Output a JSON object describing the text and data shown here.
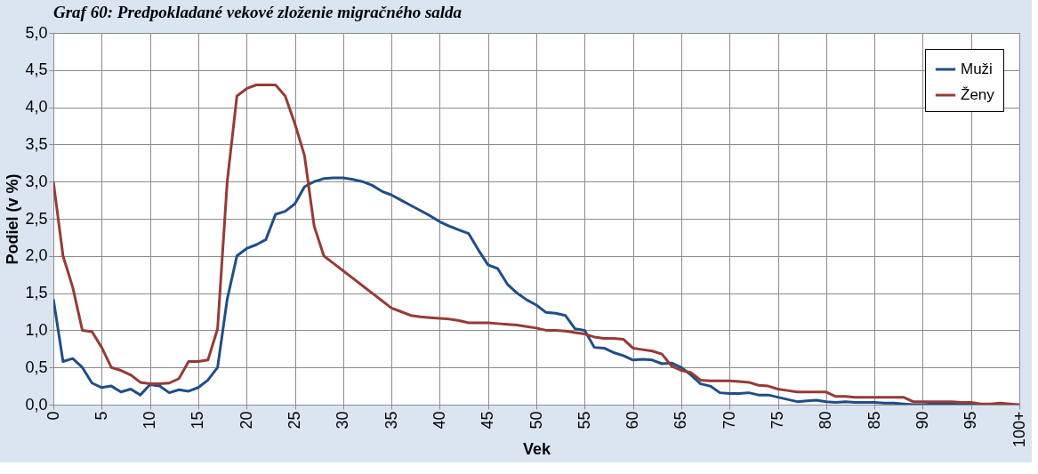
{
  "chart_data": {
    "type": "line",
    "title": "Graf 60: Predpokladané vekové zloženie migračného salda",
    "xlabel": "Vek",
    "ylabel": "Podiel (v %)",
    "x": [
      0,
      1,
      2,
      3,
      4,
      5,
      6,
      7,
      8,
      9,
      10,
      11,
      12,
      13,
      14,
      15,
      16,
      17,
      18,
      19,
      20,
      21,
      22,
      23,
      24,
      25,
      26,
      27,
      28,
      29,
      30,
      31,
      32,
      33,
      34,
      35,
      36,
      37,
      38,
      39,
      40,
      41,
      42,
      43,
      44,
      45,
      46,
      47,
      48,
      49,
      50,
      51,
      52,
      53,
      54,
      55,
      56,
      57,
      58,
      59,
      60,
      61,
      62,
      63,
      64,
      65,
      66,
      67,
      68,
      69,
      70,
      71,
      72,
      73,
      74,
      75,
      76,
      77,
      78,
      79,
      80,
      81,
      82,
      83,
      84,
      85,
      86,
      87,
      88,
      89,
      90,
      91,
      92,
      93,
      94,
      95,
      96,
      97,
      98,
      99,
      100
    ],
    "series": [
      {
        "name": "Muži",
        "color": "#1f4e89",
        "values": [
          1.42,
          0.58,
          0.62,
          0.5,
          0.29,
          0.23,
          0.25,
          0.17,
          0.21,
          0.13,
          0.27,
          0.25,
          0.16,
          0.2,
          0.18,
          0.23,
          0.33,
          0.5,
          1.42,
          2.0,
          2.1,
          2.15,
          2.22,
          2.56,
          2.6,
          2.7,
          2.93,
          3.0,
          3.04,
          3.05,
          3.05,
          3.03,
          3.0,
          2.95,
          2.87,
          2.82,
          2.75,
          2.68,
          2.61,
          2.54,
          2.46,
          2.4,
          2.35,
          2.3,
          2.08,
          1.88,
          1.83,
          1.62,
          1.5,
          1.41,
          1.34,
          1.24,
          1.23,
          1.2,
          1.02,
          1.0,
          0.77,
          0.76,
          0.7,
          0.66,
          0.6,
          0.61,
          0.6,
          0.55,
          0.56,
          0.5,
          0.4,
          0.28,
          0.25,
          0.16,
          0.15,
          0.15,
          0.16,
          0.13,
          0.13,
          0.1,
          0.07,
          0.04,
          0.05,
          0.06,
          0.04,
          0.03,
          0.04,
          0.03,
          0.03,
          0.03,
          0.02,
          0.02,
          0.01,
          0.0,
          0.0,
          0.01,
          0.01,
          0.01,
          0.0,
          0.0,
          0.0,
          0.0,
          null,
          null,
          null
        ]
      },
      {
        "name": "Ženy",
        "color": "#983a35",
        "values": [
          3.0,
          2.0,
          1.58,
          1.0,
          0.98,
          0.77,
          0.5,
          0.46,
          0.4,
          0.3,
          0.28,
          0.28,
          0.29,
          0.35,
          0.58,
          0.58,
          0.6,
          1.02,
          3.0,
          4.15,
          4.25,
          4.3,
          4.3,
          4.3,
          4.15,
          3.78,
          3.35,
          2.4,
          2.0,
          1.9,
          1.8,
          1.7,
          1.6,
          1.5,
          1.4,
          1.3,
          1.25,
          1.2,
          1.18,
          1.17,
          1.16,
          1.15,
          1.13,
          1.1,
          1.1,
          1.1,
          1.09,
          1.08,
          1.07,
          1.05,
          1.03,
          1.0,
          1.0,
          0.99,
          0.97,
          0.95,
          0.91,
          0.89,
          0.89,
          0.88,
          0.76,
          0.74,
          0.72,
          0.68,
          0.52,
          0.46,
          0.43,
          0.33,
          0.32,
          0.32,
          0.32,
          0.31,
          0.3,
          0.26,
          0.25,
          0.21,
          0.19,
          0.17,
          0.17,
          0.17,
          0.17,
          0.11,
          0.11,
          0.1,
          0.1,
          0.1,
          0.1,
          0.1,
          0.1,
          0.04,
          0.04,
          0.04,
          0.04,
          0.04,
          0.03,
          0.03,
          0.01,
          0.01,
          0.02,
          0.01,
          0.0
        ]
      }
    ],
    "xlim": [
      0,
      100
    ],
    "xticks": [
      0,
      5,
      10,
      15,
      20,
      25,
      30,
      35,
      40,
      45,
      50,
      55,
      60,
      65,
      70,
      75,
      80,
      85,
      90,
      95,
      {
        "value": 100,
        "label": "100+"
      }
    ],
    "ylim": [
      0,
      5
    ],
    "yticks": [
      {
        "value": 0,
        "label": "0,0"
      },
      {
        "value": 0.5,
        "label": "0,5"
      },
      {
        "value": 1,
        "label": "1,0"
      },
      {
        "value": 1.5,
        "label": "1,5"
      },
      {
        "value": 2,
        "label": "2,0"
      },
      {
        "value": 2.5,
        "label": "2,5"
      },
      {
        "value": 3,
        "label": "3,0"
      },
      {
        "value": 3.5,
        "label": "3,5"
      },
      {
        "value": 4,
        "label": "4,0"
      },
      {
        "value": 4.5,
        "label": "4,5"
      },
      {
        "value": 5,
        "label": "5,0"
      }
    ],
    "grid": true,
    "legend": "top right",
    "marker": "none",
    "line_style": "solid"
  }
}
